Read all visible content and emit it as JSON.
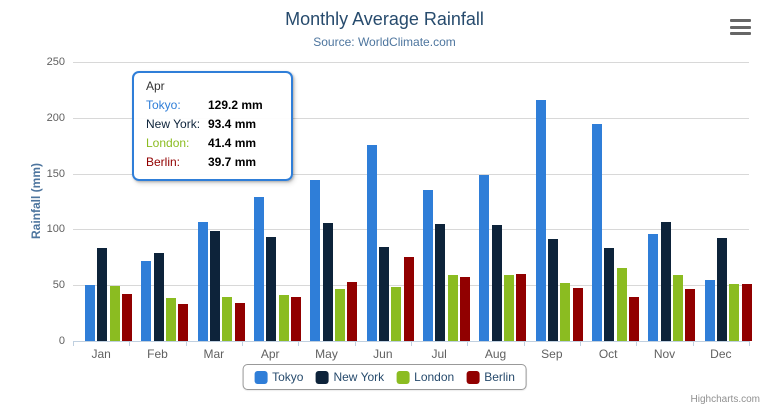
{
  "chart_data": {
    "type": "bar",
    "title": "Monthly Average Rainfall",
    "subtitle": "Source: WorldClimate.com",
    "categories": [
      "Jan",
      "Feb",
      "Mar",
      "Apr",
      "May",
      "Jun",
      "Jul",
      "Aug",
      "Sep",
      "Oct",
      "Nov",
      "Dec"
    ],
    "series": [
      {
        "name": "Tokyo",
        "color": "#2f7ed8",
        "values": [
          49.9,
          71.5,
          106.4,
          129.2,
          144.0,
          176.0,
          135.6,
          148.5,
          216.4,
          194.1,
          95.6,
          54.4
        ]
      },
      {
        "name": "New York",
        "color": "#0d233a",
        "values": [
          83.6,
          78.8,
          98.5,
          93.4,
          106.0,
          84.5,
          105.0,
          104.3,
          91.2,
          83.5,
          106.6,
          92.3
        ]
      },
      {
        "name": "London",
        "color": "#8bbc21",
        "values": [
          48.9,
          38.8,
          39.3,
          41.4,
          47.0,
          48.3,
          59.0,
          59.6,
          52.4,
          65.2,
          59.3,
          51.2
        ]
      },
      {
        "name": "Berlin",
        "color": "#910000",
        "values": [
          42.4,
          33.2,
          34.5,
          39.7,
          52.6,
          75.5,
          57.4,
          60.4,
          47.6,
          39.1,
          46.8,
          51.1
        ]
      }
    ],
    "xlabel": "",
    "ylabel": "Rainfall (mm)",
    "ylim": [
      0,
      250
    ],
    "yticks": [
      0,
      50,
      100,
      150,
      200,
      250
    ],
    "unit": "mm",
    "grid": true,
    "legend_position": "bottom"
  },
  "tooltip": {
    "header": "Apr",
    "border_color": "#2f7ed8",
    "rows": [
      {
        "label": "Tokyo:",
        "value": "129.2 mm",
        "color": "#2f7ed8"
      },
      {
        "label": "New York:",
        "value": "93.4 mm",
        "color": "#0d233a"
      },
      {
        "label": "London:",
        "value": "41.4 mm",
        "color": "#8bbc21"
      },
      {
        "label": "Berlin:",
        "value": "39.7 mm",
        "color": "#910000"
      }
    ]
  },
  "export_menu": {
    "icon": "hamburger-icon"
  },
  "credits": "Highcharts.com",
  "colors": {
    "title": "#274b6d",
    "subtitle": "#4d759e",
    "axis_title": "#4d759e",
    "axis_labels": "#606060",
    "grid_line": "#d8d8d8",
    "axis_line": "#c0d0e0",
    "legend_text": "#274b6d",
    "legend_border": "#999999",
    "credits": "#909090",
    "background": "#ffffff"
  }
}
